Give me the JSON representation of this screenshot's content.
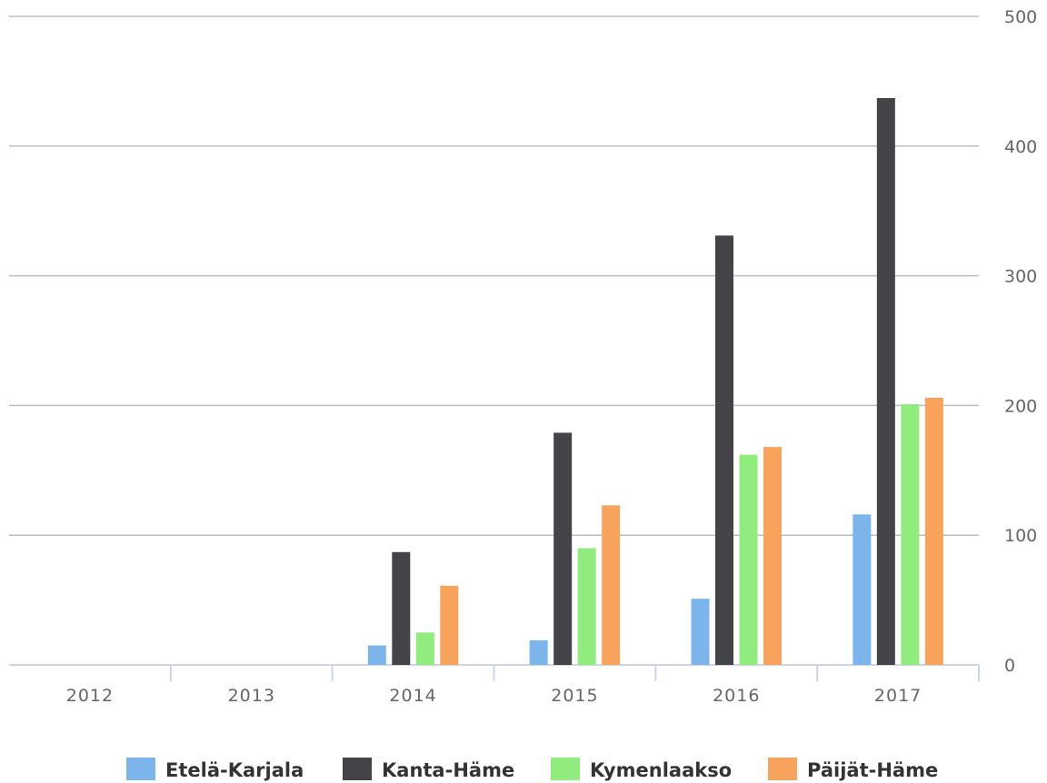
{
  "chart_data": {
    "type": "bar",
    "categories": [
      "2012",
      "2013",
      "2014",
      "2015",
      "2016",
      "2017"
    ],
    "series": [
      {
        "name": "Etelä-Karjala",
        "color": "#7cb5ec",
        "values": [
          0,
          0,
          15,
          19,
          51,
          116
        ]
      },
      {
        "name": "Kanta-Häme",
        "color": "#434348",
        "values": [
          0,
          0,
          87,
          179,
          331,
          437
        ]
      },
      {
        "name": "Kymenlaakso",
        "color": "#90ed7d",
        "values": [
          0,
          0,
          25,
          90,
          162,
          201
        ]
      },
      {
        "name": "Päijät-Häme",
        "color": "#f7a35c",
        "values": [
          0,
          0,
          61,
          123,
          168,
          206
        ]
      }
    ],
    "yticks": [
      "0",
      "100",
      "200",
      "300",
      "400",
      "500"
    ],
    "ylim": [
      0,
      500
    ],
    "y_axis_side": "right",
    "grid": true,
    "legend_position": "bottom-center",
    "title": "",
    "xlabel": "",
    "ylabel": ""
  }
}
